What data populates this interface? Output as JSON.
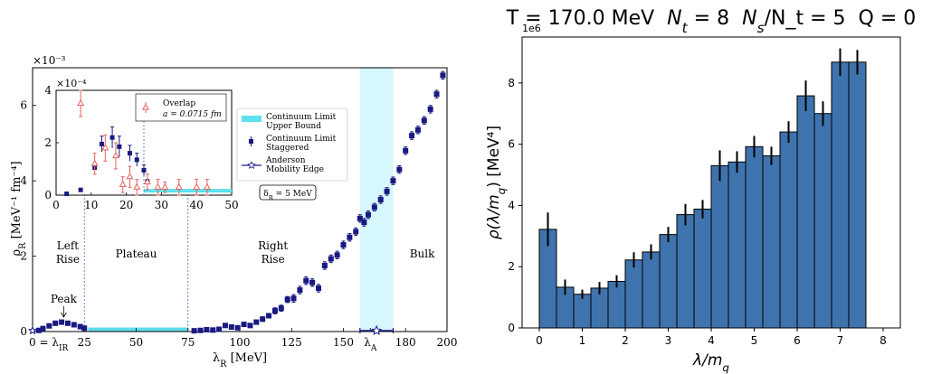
{
  "chart_data": [
    {
      "type": "scatter",
      "xlabel": "λ_R [MeV]",
      "ylabel": "ρ_R [MeV⁻¹ fm⁻⁴]",
      "y_multiplier": "×10⁻³",
      "xlim": [
        0,
        200
      ],
      "ylim": [
        0,
        0.007
      ],
      "xticks": [
        {
          "v": 0,
          "label": "0 = λ_IR"
        },
        {
          "v": 25,
          "label": "25"
        },
        {
          "v": 50,
          "label": "50"
        },
        {
          "v": 75,
          "label": "75"
        },
        {
          "v": 100,
          "label": "100"
        },
        {
          "v": 125,
          "label": "125"
        },
        {
          "v": 150,
          "label": "150"
        },
        {
          "v": 163,
          "label": "λ_A"
        },
        {
          "v": 180,
          "label": "180"
        },
        {
          "v": 200,
          "label": "200"
        }
      ],
      "yticks": [
        {
          "v": 0,
          "label": "0"
        },
        {
          "v": 0.002,
          "label": "2"
        },
        {
          "v": 0.004,
          "label": "4"
        },
        {
          "v": 0.006,
          "label": "6"
        }
      ],
      "regions": [
        {
          "label": "Left Rise",
          "x": 17
        },
        {
          "label": "Plateau",
          "x": 50
        },
        {
          "label": "Right Rise",
          "x": 116
        },
        {
          "label": "Bulk",
          "x": 188
        }
      ],
      "peak_label": "Peak",
      "peak_x": 15,
      "dotted_lines_x": [
        25,
        75
      ],
      "bulk_band": [
        158,
        174
      ],
      "mobility_edge": {
        "x": 166,
        "xerr": 8
      },
      "upper_bound": {
        "x0": 27,
        "x1": 75,
        "y": 5e-05
      },
      "legend": {
        "upper_bound": "Continuum Limit Upper Bound",
        "staggered": "Continuum Limit Staggered",
        "mobility": "Anderson Mobility Edge",
        "note": "δ_R = 5 MeV"
      },
      "series": [
        {
          "name": "Continuum Limit Staggered",
          "points": [
            [
              3,
              3e-05,
              1e-05
            ],
            [
              5,
              8e-05,
              2e-05
            ],
            [
              8,
              0.00015,
              3e-05
            ],
            [
              11,
              0.00022,
              3e-05
            ],
            [
              14,
              0.00025,
              3e-05
            ],
            [
              17,
              0.00022,
              3e-05
            ],
            [
              20,
              0.00018,
              3e-05
            ],
            [
              23,
              0.00013,
              2e-05
            ],
            [
              25,
              9e-05,
              2e-05
            ],
            [
              78,
              2e-05,
              1e-05
            ],
            [
              81,
              3e-05,
              1e-05
            ],
            [
              84,
              5e-05,
              1e-05
            ],
            [
              87,
              4e-05,
              2e-05
            ],
            [
              90,
              6e-05,
              2e-05
            ],
            [
              93,
              0.00016,
              4e-05
            ],
            [
              96,
              0.00012,
              4e-05
            ],
            [
              99,
              0.0001,
              4e-05
            ],
            [
              102,
              0.00019,
              5e-05
            ],
            [
              105,
              0.00016,
              5e-05
            ],
            [
              108,
              0.00025,
              5e-05
            ],
            [
              111,
              0.00033,
              6e-05
            ],
            [
              114,
              0.00042,
              6e-05
            ],
            [
              117,
              0.00055,
              8e-05
            ],
            [
              120,
              0.00062,
              8e-05
            ],
            [
              123,
              0.00085,
              8e-05
            ],
            [
              126,
              0.00088,
              0.0001
            ],
            [
              129,
              0.0011,
              0.0001
            ],
            [
              132,
              0.00135,
              0.0001
            ],
            [
              135,
              0.0013,
              0.0001
            ],
            [
              138,
              0.00115,
              0.0001
            ],
            [
              141,
              0.00175,
              0.0001
            ],
            [
              144,
              0.00193,
              0.0001
            ],
            [
              147,
              0.00203,
              0.0001
            ],
            [
              150,
              0.0023,
              0.0001
            ],
            [
              153,
              0.0025,
              0.0001
            ],
            [
              156,
              0.00265,
              0.0001
            ],
            [
              158,
              0.003,
              0.0001
            ],
            [
              160,
              0.0029,
              0.0001
            ],
            [
              162,
              0.0031,
              0.0001
            ],
            [
              165,
              0.0033,
              0.0001
            ],
            [
              168,
              0.0035,
              0.0001
            ],
            [
              171,
              0.00372,
              0.0001
            ],
            [
              174,
              0.004,
              0.0001
            ],
            [
              177,
              0.0043,
              0.0001
            ],
            [
              180,
              0.0048,
              0.0001
            ],
            [
              183,
              0.0052,
              0.0001
            ],
            [
              186,
              0.00535,
              0.0001
            ],
            [
              189,
              0.0056,
              0.0001
            ],
            [
              192,
              0.0059,
              0.0001
            ],
            [
              195,
              0.0063,
              0.0001
            ],
            [
              198,
              0.0068,
              0.0001
            ]
          ]
        }
      ],
      "inset": {
        "xlim": [
          0,
          50
        ],
        "ylim": [
          0,
          0.0004
        ],
        "y_multiplier": "×10⁻⁴",
        "xticks": [
          0,
          10,
          20,
          30,
          40,
          50
        ],
        "yticks": [
          {
            "v": 0,
            "label": "0"
          },
          {
            "v": 0.0002,
            "label": "2"
          },
          {
            "v": 0.0004,
            "label": "4"
          }
        ],
        "overlap_legend": {
          "name": "Overlap",
          "detail": "a = 0.0715 fm"
        },
        "staggered": [
          [
            3,
            5e-06,
            2e-06
          ],
          [
            7,
            2e-05,
            5e-06
          ],
          [
            11,
            0.000105,
            1e-05
          ],
          [
            13,
            0.000195,
            3e-05
          ],
          [
            16,
            0.00022,
            4e-05
          ],
          [
            18,
            0.000185,
            4e-05
          ],
          [
            21,
            0.00016,
            3e-05
          ],
          [
            23,
            0.000135,
            2.5e-05
          ],
          [
            25,
            9.5e-05,
            2e-05
          ],
          [
            26,
            5e-05,
            1e-05
          ]
        ],
        "overlap": [
          [
            7,
            0.00035,
            5e-05
          ],
          [
            11,
            0.00012,
            4e-05
          ],
          [
            14,
            0.00018,
            5e-05
          ],
          [
            17,
            0.00015,
            5e-05
          ],
          [
            19,
            4e-05,
            3e-05
          ],
          [
            21,
            7e-05,
            4e-05
          ],
          [
            23,
            3e-05,
            3e-05
          ],
          [
            26,
            5e-05,
            3e-05
          ],
          [
            29,
            3e-05,
            3e-05
          ],
          [
            31,
            3e-05,
            2e-05
          ],
          [
            35,
            3e-05,
            3e-05
          ],
          [
            40,
            3e-05,
            3e-05
          ],
          [
            43,
            3e-05,
            3e-05
          ]
        ],
        "upper_bound": {
          "x0": 25,
          "x1": 50,
          "y": 1e-05
        }
      }
    },
    {
      "type": "bar",
      "title": "T = 170.0 MeV   N_t = 8   N_s/N_t = 5   Q = 0",
      "xlabel": "λ/m_q",
      "ylabel": "ρ(λ/m_q) [MeV⁴]",
      "y_multiplier": "1e6",
      "xlim": [
        -0.4,
        8.4
      ],
      "ylim": [
        0,
        9.5
      ],
      "xticks": [
        0,
        1,
        2,
        3,
        4,
        5,
        6,
        7,
        8
      ],
      "yticks": [
        0,
        2,
        4,
        6,
        8
      ],
      "bar_width": 0.4,
      "bar_color": "#3f73ad",
      "bars": [
        {
          "x": 0.2,
          "value": 3.22,
          "err": 0.55
        },
        {
          "x": 0.6,
          "value": 1.33,
          "err": 0.25
        },
        {
          "x": 1.0,
          "value": 1.1,
          "err": 0.15
        },
        {
          "x": 1.4,
          "value": 1.3,
          "err": 0.2
        },
        {
          "x": 1.8,
          "value": 1.52,
          "err": 0.2
        },
        {
          "x": 2.2,
          "value": 2.22,
          "err": 0.25
        },
        {
          "x": 2.6,
          "value": 2.48,
          "err": 0.25
        },
        {
          "x": 3.0,
          "value": 3.05,
          "err": 0.25
        },
        {
          "x": 3.4,
          "value": 3.7,
          "err": 0.35
        },
        {
          "x": 3.8,
          "value": 3.88,
          "err": 0.3
        },
        {
          "x": 4.2,
          "value": 5.3,
          "err": 0.5
        },
        {
          "x": 4.6,
          "value": 5.42,
          "err": 0.35
        },
        {
          "x": 5.0,
          "value": 5.92,
          "err": 0.35
        },
        {
          "x": 5.4,
          "value": 5.62,
          "err": 0.3
        },
        {
          "x": 5.8,
          "value": 6.4,
          "err": 0.35
        },
        {
          "x": 6.2,
          "value": 7.58,
          "err": 0.5
        },
        {
          "x": 6.6,
          "value": 7.0,
          "err": 0.4
        },
        {
          "x": 7.0,
          "value": 8.68,
          "err": 0.45
        },
        {
          "x": 7.4,
          "value": 8.68,
          "err": 0.4
        }
      ]
    }
  ]
}
